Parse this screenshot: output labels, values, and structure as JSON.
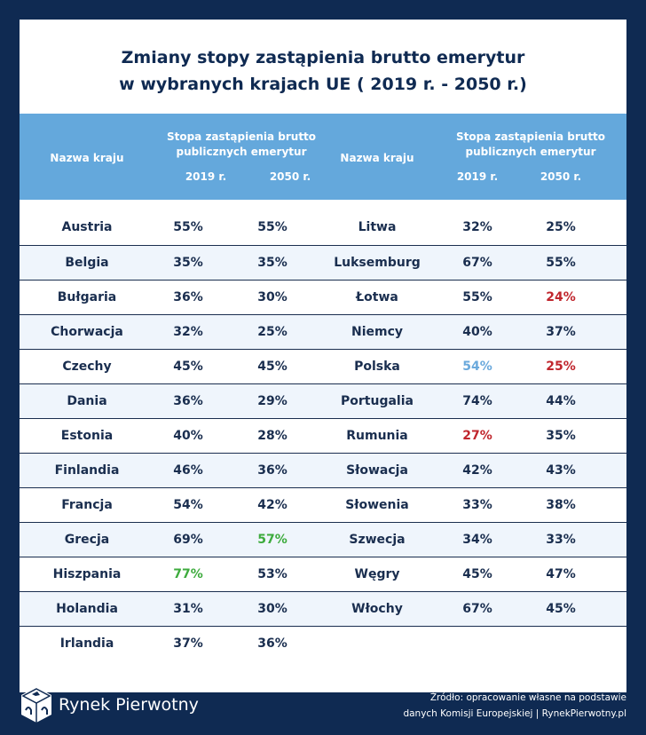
{
  "title": [
    "Zmiany stopy zastąpienia brutto emerytur",
    "w wybranych krajach UE ( 2019 r. - 2050 r.)"
  ],
  "header": {
    "country": "Nazwa kraju",
    "rate": [
      "Stopa zastąpienia brutto",
      "publicznych emerytur"
    ],
    "y2019": "2019 r.",
    "y2050": "2050 r."
  },
  "colors": {
    "background": "#0f2a52",
    "header": "#64a8dc",
    "red": "#c0262d",
    "green": "#3dab3d",
    "blue": "#6aa9dc"
  },
  "left": [
    {
      "country": "Austria",
      "v2019": "55%",
      "v2050": "55%"
    },
    {
      "country": "Belgia",
      "v2019": "35%",
      "v2050": "35%"
    },
    {
      "country": "Bułgaria",
      "v2019": "36%",
      "v2050": "30%"
    },
    {
      "country": "Chorwacja",
      "v2019": "32%",
      "v2050": "25%"
    },
    {
      "country": "Czechy",
      "v2019": "45%",
      "v2050": "45%"
    },
    {
      "country": "Dania",
      "v2019": "36%",
      "v2050": "29%"
    },
    {
      "country": "Estonia",
      "v2019": "40%",
      "v2050": "28%"
    },
    {
      "country": "Finlandia",
      "v2019": "46%",
      "v2050": "36%"
    },
    {
      "country": "Francja",
      "v2019": "54%",
      "v2050": "42%"
    },
    {
      "country": "Grecja",
      "v2019": "69%",
      "v2050": "57%",
      "c2050": "green"
    },
    {
      "country": "Hiszpania",
      "v2019": "77%",
      "v2050": "53%",
      "c2019": "green"
    },
    {
      "country": "Holandia",
      "v2019": "31%",
      "v2050": "30%"
    },
    {
      "country": "Irlandia",
      "v2019": "37%",
      "v2050": "36%"
    }
  ],
  "right": [
    {
      "country": "Litwa",
      "v2019": "32%",
      "v2050": "25%"
    },
    {
      "country": "Luksemburg",
      "v2019": "67%",
      "v2050": "55%"
    },
    {
      "country": "Łotwa",
      "v2019": "55%",
      "v2050": "24%",
      "c2050": "red"
    },
    {
      "country": "Niemcy",
      "v2019": "40%",
      "v2050": "37%"
    },
    {
      "country": "Polska",
      "v2019": "54%",
      "v2050": "25%",
      "c2019": "blue",
      "c2050": "red"
    },
    {
      "country": "Portugalia",
      "v2019": "74%",
      "v2050": "44%"
    },
    {
      "country": "Rumunia",
      "v2019": "27%",
      "v2050": "35%",
      "c2019": "red"
    },
    {
      "country": "Słowacja",
      "v2019": "42%",
      "v2050": "43%"
    },
    {
      "country": "Słowenia",
      "v2019": "33%",
      "v2050": "38%"
    },
    {
      "country": "Szwecja",
      "v2019": "34%",
      "v2050": "33%"
    },
    {
      "country": "Węgry",
      "v2019": "45%",
      "v2050": "47%"
    },
    {
      "country": "Włochy",
      "v2019": "67%",
      "v2050": "45%"
    }
  ],
  "footer": {
    "logo": "Rynek Pierwotny",
    "source": [
      "Źródło: opracowanie własne na podstawie",
      "danych Komisji Europejskiej | RynekPierwotny.pl"
    ]
  }
}
